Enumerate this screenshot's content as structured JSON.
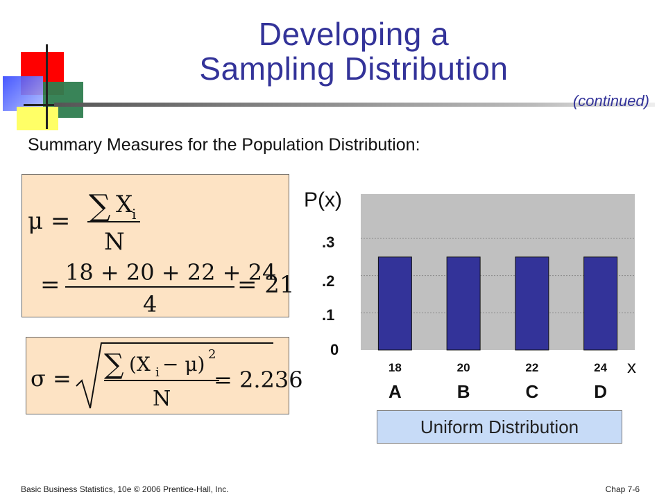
{
  "slide": {
    "title_line1": "Developing a",
    "title_line2": "Sampling Distribution",
    "continued": "(continued)",
    "subtitle": "Summary Measures for the Population Distribution:",
    "footer_left": "Basic Business Statistics, 10e © 2006 Prentice-Hall,  Inc.",
    "footer_right": "Chap 7-6"
  },
  "formulas": {
    "mu_lhs": "μ =",
    "mu_numerator": "X",
    "mu_sub": "i",
    "mu_denominator": "N",
    "mu_eq2": "=",
    "mu_num2": "18 + 20 + 22 + 24",
    "mu_den2": "4",
    "mu_result": "= 21",
    "sigma_lhs": "σ =",
    "sigma_num": "(X",
    "sigma_sub": "i",
    "sigma_num_rest": "− μ)",
    "sigma_exp": "2",
    "sigma_den": "N",
    "sigma_result": "= 2.236",
    "sum_symbol": "∑"
  },
  "chart_data": {
    "type": "bar",
    "ylabel": "P(x)",
    "xlabel": "x",
    "y_tick_labels": [
      ".3",
      ".2",
      ".1",
      "0"
    ],
    "categories": [
      "18",
      "20",
      "22",
      "24"
    ],
    "category_letters": [
      "A",
      "B",
      "C",
      "D"
    ],
    "values": [
      0.25,
      0.25,
      0.25,
      0.25
    ],
    "legend": "Uniform Distribution",
    "bar_color": "#333399",
    "plot_bg": "#c0c0c0"
  }
}
